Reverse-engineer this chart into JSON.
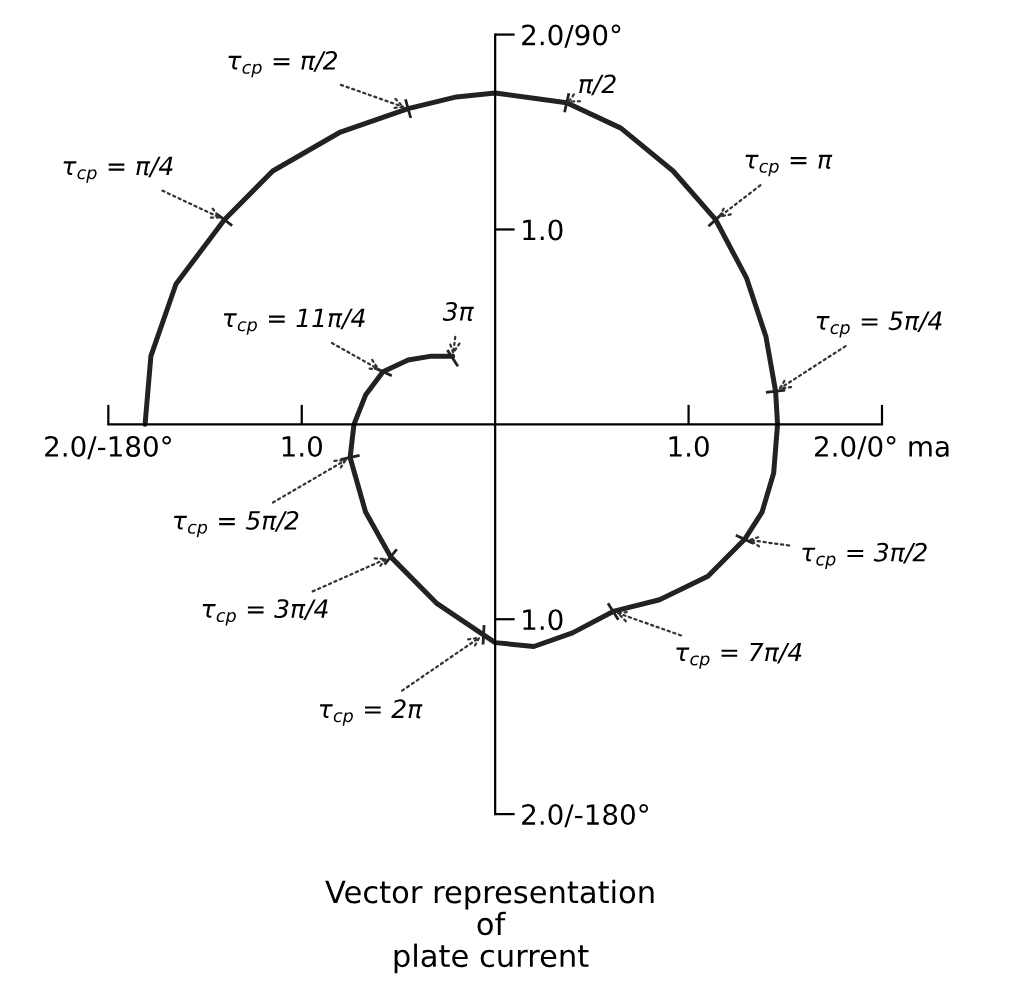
{
  "chart_data": {
    "type": "line",
    "title": "Vector representation\nof\nplate current",
    "x": [
      -1.81,
      -1.78,
      -1.65,
      -1.4,
      -1.15,
      -0.8,
      -0.45,
      -0.2,
      0.0,
      0.37,
      0.65,
      0.92,
      1.14,
      1.3,
      1.4,
      1.45,
      1.46,
      1.44,
      1.38,
      1.29,
      1.1,
      0.85,
      0.61,
      0.4,
      0.2,
      0.0,
      -0.06,
      -0.3,
      -0.54,
      -0.67,
      -0.75,
      -0.73,
      -0.67,
      -0.58,
      -0.45,
      -0.33,
      -0.22
    ],
    "values": [
      0.0,
      0.35,
      0.72,
      1.05,
      1.3,
      1.5,
      1.62,
      1.68,
      1.7,
      1.65,
      1.52,
      1.3,
      1.05,
      0.75,
      0.45,
      0.17,
      0.0,
      -0.25,
      -0.45,
      -0.59,
      -0.78,
      -0.9,
      -0.96,
      -1.07,
      -1.14,
      -1.12,
      -1.08,
      -0.92,
      -0.68,
      -0.45,
      -0.17,
      0.0,
      0.15,
      0.27,
      0.33,
      0.35,
      0.35
    ],
    "color": "#222222",
    "xlim": [
      -2.0,
      2.0
    ],
    "ylim": [
      -2.0,
      2.0
    ],
    "xticks": [
      {
        "value": -2.0,
        "label": "2.0/-180°"
      },
      {
        "value": -1.0,
        "label": "1.0"
      },
      {
        "value": 1.0,
        "label": "1.0"
      },
      {
        "value": 2.0,
        "label": "2.0/0° ma"
      }
    ],
    "yticks": [
      {
        "value": -2.0,
        "label": "2.0/-180°"
      },
      {
        "value": -1.0,
        "label": "1.0"
      },
      {
        "value": 1.0,
        "label": "1.0"
      },
      {
        "value": 2.0,
        "label": "2.0/90°"
      }
    ],
    "annotations": [
      {
        "text": "τ$_{cp}$ = π/4",
        "x": -1.4,
        "y": 1.05
      },
      {
        "text": "τ$_{cp}$ = π/2",
        "x": -0.45,
        "y": 1.62
      },
      {
        "text": "π/2",
        "x": 0.37,
        "y": 1.65
      },
      {
        "text": "τ$_{cp}$ = π",
        "x": 1.14,
        "y": 1.05
      },
      {
        "text": "τ$_{cp}$ = 5π/4",
        "x": 1.45,
        "y": 0.17
      },
      {
        "text": "τ$_{cp}$ = 3π/2",
        "x": 1.29,
        "y": -0.59
      },
      {
        "text": "τ$_{cp}$ = 7π/4",
        "x": 0.61,
        "y": -0.96
      },
      {
        "text": "τ$_{cp}$ = 2π",
        "x": -0.06,
        "y": -1.08
      },
      {
        "text": "τ$_{cp}$ = 3π/4",
        "x": -0.54,
        "y": -0.68
      },
      {
        "text": "τ$_{cp}$ = 5π/2",
        "x": -0.75,
        "y": -0.17
      },
      {
        "text": "τ$_{cp}$ = 11π/4",
        "x": -0.58,
        "y": 0.27
      },
      {
        "text": "3π",
        "x": -0.22,
        "y": 0.34
      }
    ]
  }
}
